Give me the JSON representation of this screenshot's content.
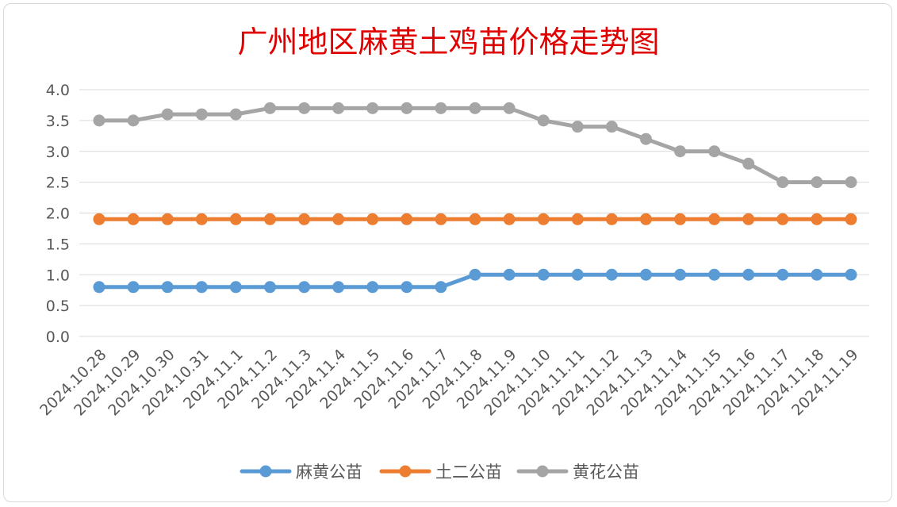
{
  "chart_data": {
    "type": "line",
    "title": "广州地区麻黄土鸡苗价格走势图",
    "categories": [
      "2024.10.28",
      "2024.10.29",
      "2024.10.30",
      "2024.10.31",
      "2024.11.1",
      "2024.11.2",
      "2024.11.3",
      "2024.11.4",
      "2024.11.5",
      "2024.11.6",
      "2024.11.7",
      "2024.11.8",
      "2024.11.9",
      "2024.11.10",
      "2024.11.11",
      "2024.11.12",
      "2024.11.13",
      "2024.11.14",
      "2024.11.15",
      "2024.11.16",
      "2024.11.17",
      "2024.11.18",
      "2024.11.19"
    ],
    "y_ticks": [
      "0.0",
      "0.5",
      "1.0",
      "1.5",
      "2.0",
      "2.5",
      "3.0",
      "3.5",
      "4.0"
    ],
    "ylim": [
      0,
      4
    ],
    "grid": true,
    "legend_position": "bottom",
    "series": [
      {
        "name": "麻黄公苗",
        "color": "#5b9bd5",
        "values": [
          0.8,
          0.8,
          0.8,
          0.8,
          0.8,
          0.8,
          0.8,
          0.8,
          0.8,
          0.8,
          0.8,
          1.0,
          1.0,
          1.0,
          1.0,
          1.0,
          1.0,
          1.0,
          1.0,
          1.0,
          1.0,
          1.0,
          1.0
        ]
      },
      {
        "name": "土二公苗",
        "color": "#ed7d31",
        "values": [
          1.9,
          1.9,
          1.9,
          1.9,
          1.9,
          1.9,
          1.9,
          1.9,
          1.9,
          1.9,
          1.9,
          1.9,
          1.9,
          1.9,
          1.9,
          1.9,
          1.9,
          1.9,
          1.9,
          1.9,
          1.9,
          1.9,
          1.9
        ]
      },
      {
        "name": "黄花公苗",
        "color": "#a5a5a5",
        "values": [
          3.5,
          3.5,
          3.6,
          3.6,
          3.6,
          3.7,
          3.7,
          3.7,
          3.7,
          3.7,
          3.7,
          3.7,
          3.7,
          3.5,
          3.4,
          3.4,
          3.2,
          3.0,
          3.0,
          2.8,
          2.5,
          2.5,
          2.5
        ]
      }
    ]
  }
}
